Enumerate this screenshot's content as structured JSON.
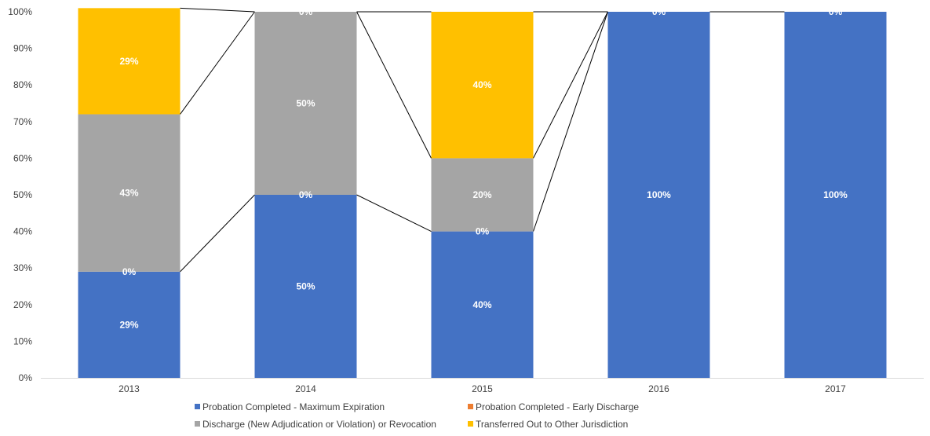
{
  "chart_data": {
    "type": "bar",
    "stacked": true,
    "percent": true,
    "categories": [
      "2013",
      "2014",
      "2015",
      "2016",
      "2017"
    ],
    "ylim": [
      0,
      100
    ],
    "yticks": [
      "0%",
      "10%",
      "20%",
      "30%",
      "40%",
      "50%",
      "60%",
      "70%",
      "80%",
      "90%",
      "100%"
    ],
    "series_lines": true,
    "series": [
      {
        "name": "Probation Completed - Maximum Expiration",
        "color": "#4472C4",
        "values": [
          29,
          50,
          40,
          100,
          100
        ],
        "labels": [
          "29%",
          "50%",
          "40%",
          "100%",
          "100%"
        ]
      },
      {
        "name": "Probation Completed - Early Discharge",
        "color": "#ED7D31",
        "values": [
          0,
          0,
          0,
          0,
          0
        ],
        "labels": [
          "0%",
          "0%",
          "0%",
          "0%",
          "0%"
        ]
      },
      {
        "name": "Discharge (New Adjudication or Violation) or Revocation",
        "color": "#A5A5A5",
        "values": [
          43,
          50,
          20,
          0,
          0
        ],
        "labels": [
          "43%",
          "50%",
          "20%",
          "",
          ""
        ]
      },
      {
        "name": "Transferred Out to Other Jurisdiction",
        "color": "#FFC000",
        "values": [
          29,
          0,
          40,
          0,
          0
        ],
        "labels": [
          "29%",
          "0%",
          "40%",
          "",
          ""
        ]
      }
    ],
    "legend": "bottom",
    "grid": false
  }
}
